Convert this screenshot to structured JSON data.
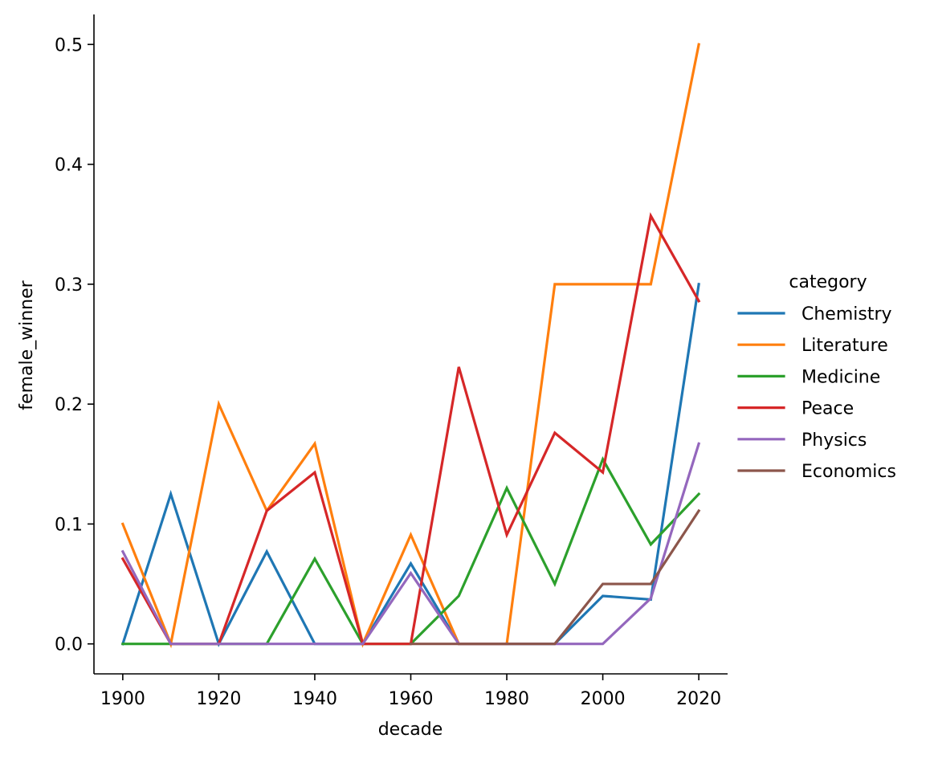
{
  "chart_data": {
    "type": "line",
    "xlabel": "decade",
    "ylabel": "female_winner",
    "xlim": [
      1894,
      2026
    ],
    "ylim": [
      -0.025,
      0.525
    ],
    "xticks": [
      1900,
      1920,
      1940,
      1960,
      1980,
      2000,
      2020
    ],
    "xtick_labels": [
      "1900",
      "1920",
      "1940",
      "1960",
      "1980",
      "2000",
      "2020"
    ],
    "yticks": [
      0.0,
      0.1,
      0.2,
      0.3,
      0.4,
      0.5
    ],
    "ytick_labels": [
      "0.0",
      "0.1",
      "0.2",
      "0.3",
      "0.4",
      "0.5"
    ],
    "grid": false,
    "legend_title": "category",
    "legend_position": "right",
    "x": [
      1900,
      1910,
      1920,
      1930,
      1940,
      1950,
      1960,
      1970,
      1980,
      1990,
      2000,
      2010,
      2020
    ],
    "series": [
      {
        "name": "Chemistry",
        "color": "#1f77b4",
        "values": [
          0.0,
          0.125,
          0.0,
          0.077,
          0.0,
          0.0,
          0.067,
          0.0,
          0.0,
          0.0,
          0.04,
          0.037,
          0.3
        ]
      },
      {
        "name": "Literature",
        "color": "#ff7f0e",
        "values": [
          0.1,
          0.0,
          0.2,
          0.111,
          0.167,
          0.0,
          0.091,
          0.0,
          0.0,
          0.3,
          0.3,
          0.3,
          0.5
        ]
      },
      {
        "name": "Medicine",
        "color": "#2ca02c",
        "values": [
          0.0,
          0.0,
          0.0,
          0.0,
          0.071,
          0.0,
          0.0,
          0.04,
          0.13,
          0.05,
          0.154,
          0.083,
          0.125
        ]
      },
      {
        "name": "Peace",
        "color": "#d62728",
        "values": [
          0.071,
          0.0,
          0.0,
          0.111,
          0.143,
          0.0,
          0.0,
          0.231,
          0.091,
          0.176,
          0.143,
          0.357,
          0.286
        ]
      },
      {
        "name": "Physics",
        "color": "#9467bd",
        "values": [
          0.077,
          0.0,
          0.0,
          0.0,
          0.0,
          0.0,
          0.059,
          0.0,
          0.0,
          0.0,
          0.0,
          0.038,
          0.167
        ]
      },
      {
        "name": "Economics",
        "color": "#8c564b",
        "values": [
          null,
          null,
          null,
          null,
          null,
          null,
          0.0,
          0.0,
          0.0,
          0.0,
          0.05,
          0.05,
          0.111
        ]
      }
    ]
  }
}
